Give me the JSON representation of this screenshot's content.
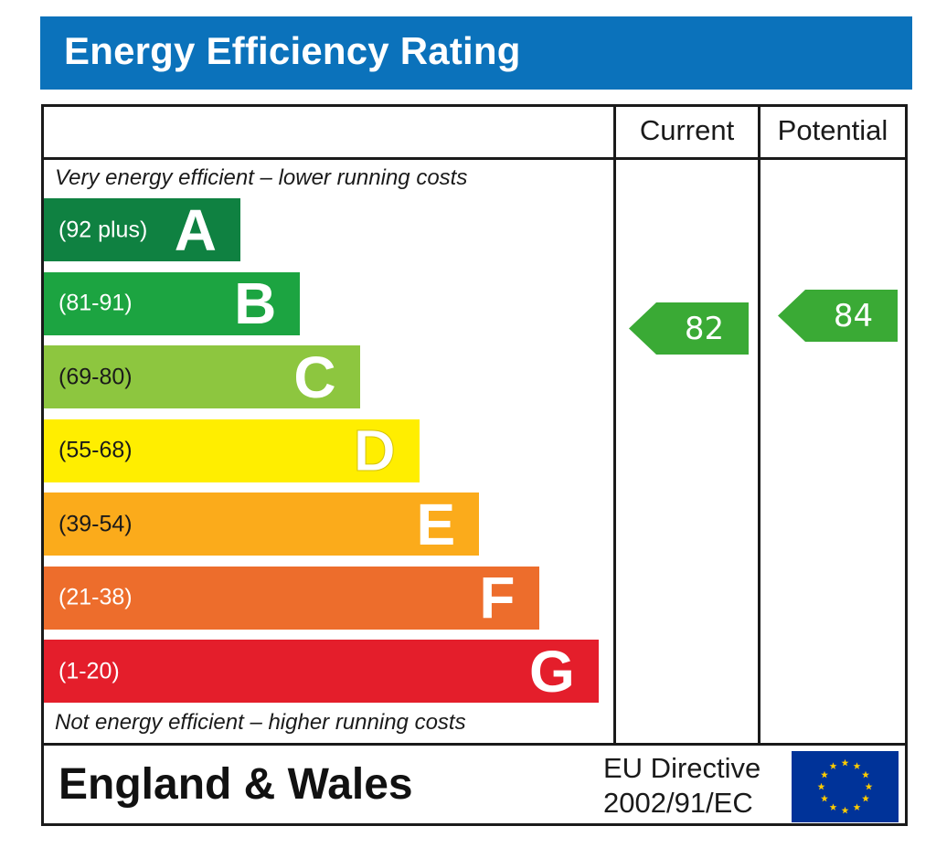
{
  "title": "Energy Efficiency Rating",
  "columns": {
    "current": "Current",
    "potential": "Potential"
  },
  "captions": {
    "top": "Very energy efficient – lower running costs",
    "bottom": "Not energy efficient – higher running costs"
  },
  "footer": {
    "region": "England & Wales",
    "directive_line1": "EU Directive",
    "directive_line2": "2002/91/EC"
  },
  "colors": {
    "header": "#0b72bb",
    "A": "#0f8141",
    "B": "#1ca441",
    "C": "#8dc63f",
    "D": "#ffee00",
    "E": "#fbab1b",
    "F": "#ed6d2c",
    "G": "#e41e2b",
    "rating_arrow": "#3aaa35",
    "eu_flag": "#003399",
    "eu_star": "#ffcc00"
  },
  "chart_data": {
    "type": "bar",
    "bands": [
      {
        "letter": "A",
        "range": "(92 plus)",
        "min": 92,
        "max": 100
      },
      {
        "letter": "B",
        "range": "(81-91)",
        "min": 81,
        "max": 91
      },
      {
        "letter": "C",
        "range": "(69-80)",
        "min": 69,
        "max": 80
      },
      {
        "letter": "D",
        "range": "(55-68)",
        "min": 55,
        "max": 68
      },
      {
        "letter": "E",
        "range": "(39-54)",
        "min": 39,
        "max": 54
      },
      {
        "letter": "F",
        "range": "(21-38)",
        "min": 21,
        "max": 38
      },
      {
        "letter": "G",
        "range": "(1-20)",
        "min": 1,
        "max": 20
      }
    ],
    "current": 82,
    "potential": 84
  }
}
